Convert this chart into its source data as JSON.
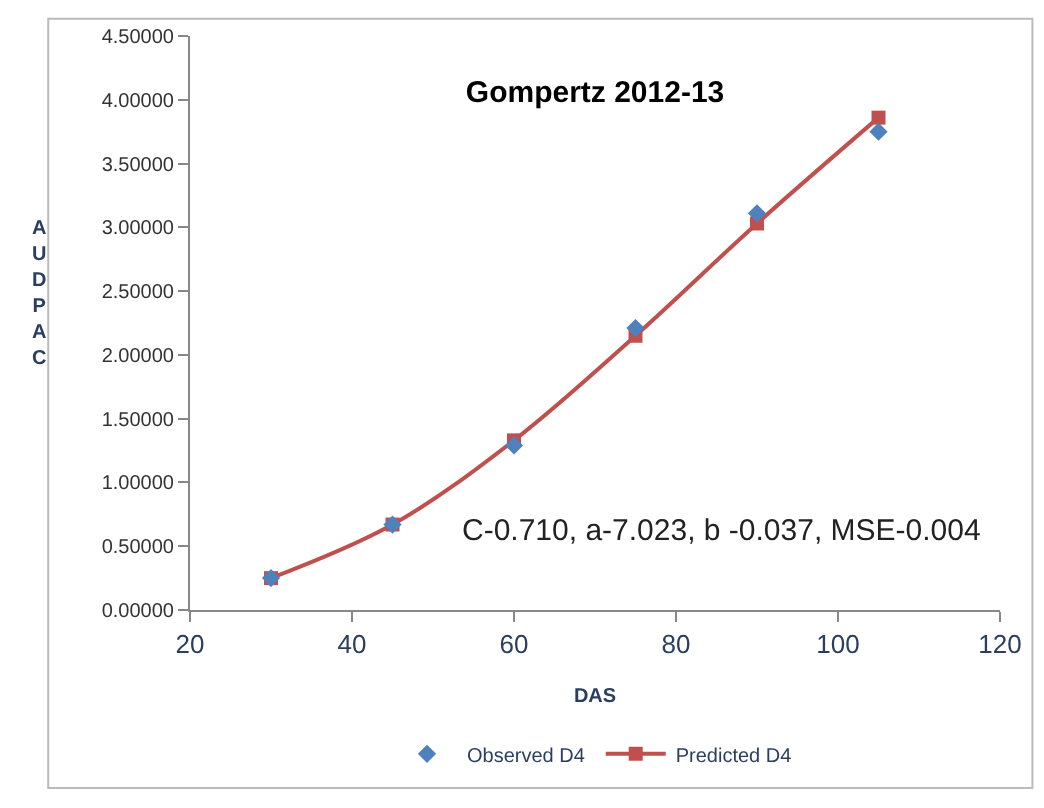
{
  "chart_data": {
    "type": "line",
    "title": "Gompertz 2012-13",
    "xlabel": "DAS",
    "ylabel": "AUDPAC",
    "x": [
      30,
      45,
      60,
      75,
      90,
      105
    ],
    "series": [
      {
        "name": "Observed D4",
        "color": "#4f81bd",
        "type": "scatter",
        "marker": "diamond",
        "values": [
          0.25,
          0.67,
          1.29,
          2.21,
          3.11,
          3.75
        ]
      },
      {
        "name": "Predicted D4",
        "color": "#c0504d",
        "marker": "square",
        "values": [
          0.25,
          0.67,
          1.33,
          2.15,
          3.03,
          3.86
        ]
      }
    ],
    "xlim": [
      20,
      120
    ],
    "xticks": [
      20,
      40,
      60,
      80,
      100,
      120
    ],
    "ylim": [
      0,
      4.5
    ],
    "yticks": [
      {
        "value": 0,
        "label": "0.00000"
      },
      {
        "value": 0.5,
        "label": "0.50000"
      },
      {
        "value": 1,
        "label": "1.00000"
      },
      {
        "value": 1.5,
        "label": "1.50000"
      },
      {
        "value": 2,
        "label": "2.00000"
      },
      {
        "value": 2.5,
        "label": "2.50000"
      },
      {
        "value": 3,
        "label": "3.00000"
      },
      {
        "value": 3.5,
        "label": "3.50000"
      },
      {
        "value": 4,
        "label": "4.00000"
      },
      {
        "value": 4.5,
        "label": "4.50000"
      }
    ],
    "annotations": [
      "C-0.710, a-7.023, b -0.037, MSE-0.004"
    ],
    "legend": "bottom"
  }
}
